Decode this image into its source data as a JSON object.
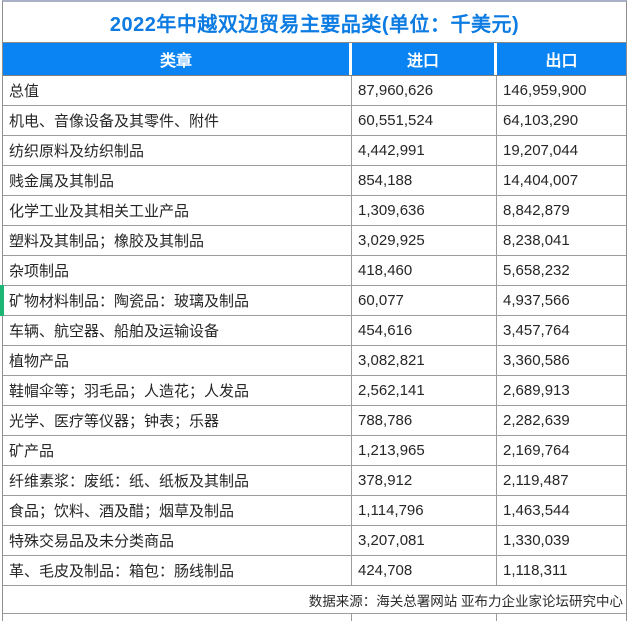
{
  "colors": {
    "title_text": "#0c7be2",
    "header_bg": "#0a84f2",
    "header_text": "#ffffff",
    "row_border": "#9c9c9c",
    "row_marker_green": "#1db574"
  },
  "chart_data": {
    "type": "table",
    "title": "2022年中越双边贸易主要品类(单位：千美元)",
    "columns": [
      "类章",
      "进口",
      "出口"
    ],
    "rows": [
      [
        "总值",
        "87,960,626",
        "146,959,900"
      ],
      [
        "机电、音像设备及其零件、附件",
        "60,551,524",
        "64,103,290"
      ],
      [
        "纺织原料及纺织制品",
        "4,442,991",
        "19,207,044"
      ],
      [
        "贱金属及其制品",
        "854,188",
        "14,404,007"
      ],
      [
        "化学工业及其相关工业产品",
        "1,309,636",
        "8,842,879"
      ],
      [
        "塑料及其制品；橡胶及其制品",
        "3,029,925",
        "8,238,041"
      ],
      [
        "杂项制品",
        "418,460",
        "5,658,232"
      ],
      [
        "矿物材料制品：陶瓷品：玻璃及制品",
        "60,077",
        "4,937,566"
      ],
      [
        "车辆、航空器、船舶及运输设备",
        "454,616",
        "3,457,764"
      ],
      [
        "植物产品",
        "3,082,821",
        "3,360,586"
      ],
      [
        "鞋帽伞等；羽毛品；人造花；人发品",
        "2,562,141",
        "2,689,913"
      ],
      [
        "光学、医疗等仪器；钟表；乐器",
        "788,786",
        "2,282,639"
      ],
      [
        "矿产品",
        "1,213,965",
        "2,169,764"
      ],
      [
        "纤维素浆：废纸：纸、纸板及其制品",
        "378,912",
        "2,119,487"
      ],
      [
        "食品；饮料、酒及醋；烟草及制品",
        "1,114,796",
        "1,463,544"
      ],
      [
        "特殊交易品及未分类商品",
        "3,207,081",
        "1,330,039"
      ],
      [
        "革、毛皮及制品：箱包：肠线制品",
        "424,708",
        "1,118,311"
      ]
    ],
    "categories": [
      "总值",
      "机电、音像设备及其零件、附件",
      "纺织原料及纺织制品",
      "贱金属及其制品",
      "化学工业及其相关工业产品",
      "塑料及其制品；橡胶及其制品",
      "杂项制品",
      "矿物材料制品：陶瓷品：玻璃及制品",
      "车辆、航空器、船舶及运输设备",
      "植物产品",
      "鞋帽伞等；羽毛品；人造花；人发品",
      "光学、医疗等仪器；钟表；乐器",
      "矿产品",
      "纤维素浆：废纸：纸、纸板及其制品",
      "食品；饮料、酒及醋；烟草及制品",
      "特殊交易品及未分类商品",
      "革、毛皮及制品：箱包：肠线制品"
    ],
    "series": [
      {
        "name": "进口",
        "values": [
          87960626,
          60551524,
          4442991,
          854188,
          1309636,
          3029925,
          418460,
          60077,
          454616,
          3082821,
          2562141,
          788786,
          1213965,
          378912,
          1114796,
          3207081,
          424708
        ]
      },
      {
        "name": "出口",
        "values": [
          146959900,
          64103290,
          19207044,
          14404007,
          8842879,
          8238041,
          5658232,
          4937566,
          3457764,
          3360586,
          2689913,
          2282639,
          2169764,
          2119487,
          1463544,
          1330039,
          1118311
        ]
      }
    ],
    "unit": "千美元",
    "source_note": "数据来源：海关总署网站 亚布力企业家论坛研究中心"
  }
}
